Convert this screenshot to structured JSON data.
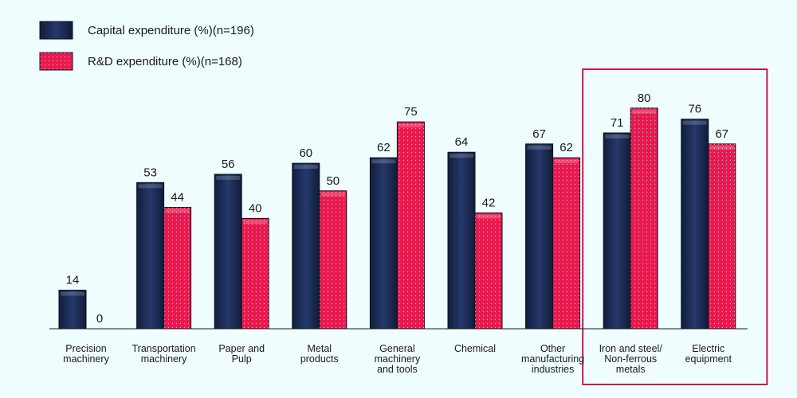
{
  "chart_data": {
    "type": "bar",
    "title": "",
    "xlabel": "",
    "ylabel": "",
    "ylim": [
      0,
      80
    ],
    "grid": false,
    "legend_position": "top-left",
    "categories": [
      [
        "Precision",
        "machinery"
      ],
      [
        "Transportation",
        "machinery"
      ],
      [
        "Paper and",
        "Pulp"
      ],
      [
        "Metal",
        "products"
      ],
      [
        "General",
        "machinery",
        "and tools"
      ],
      [
        "Chemical"
      ],
      [
        "Other",
        "manufacturing",
        "industries"
      ],
      [
        "Iron and steel/",
        "Non-ferrous",
        "metals"
      ],
      [
        "Electric",
        "equipment"
      ]
    ],
    "series": [
      {
        "name": "Capital expenditure (%)(n=196)",
        "color": "#1e3262",
        "values": [
          14,
          53,
          56,
          60,
          62,
          64,
          67,
          71,
          76
        ]
      },
      {
        "name": "R&D expenditure (%)(n=168)",
        "color": "#e8194e",
        "values": [
          0,
          44,
          40,
          50,
          75,
          42,
          62,
          80,
          67
        ]
      }
    ],
    "highlight": {
      "categories": [
        7,
        8
      ],
      "color": "#c8174a"
    }
  }
}
